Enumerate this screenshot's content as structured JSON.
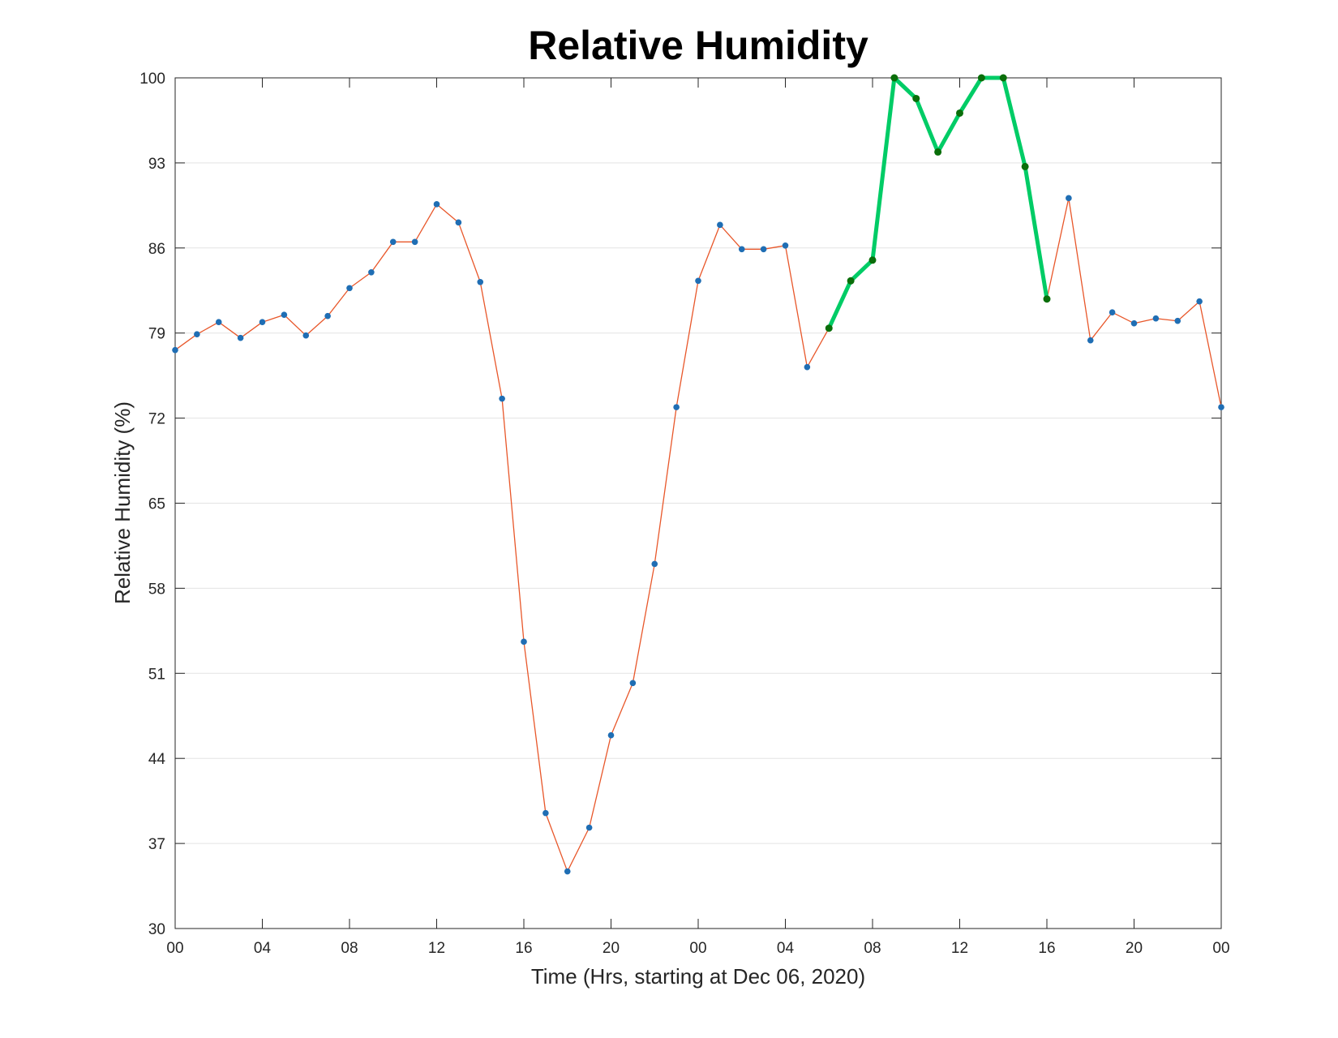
{
  "chart_data": {
    "type": "line",
    "title": "Relative Humidity",
    "xlabel": "Time (Hrs, starting at Dec 06, 2020)",
    "ylabel": "Relative Humidity (%)",
    "ylim": [
      30,
      100
    ],
    "xlim": [
      0,
      48
    ],
    "yticks": [
      30,
      37,
      44,
      51,
      58,
      65,
      72,
      79,
      86,
      93,
      100
    ],
    "ytick_labels": [
      "30",
      "37",
      "44",
      "51",
      "58",
      "65",
      "72",
      "79",
      "86",
      "93",
      "100"
    ],
    "xticks": [
      0,
      4,
      8,
      12,
      16,
      20,
      24,
      28,
      32,
      36,
      40,
      44,
      48
    ],
    "xtick_labels": [
      "00",
      "04",
      "08",
      "12",
      "16",
      "20",
      "00",
      "04",
      "08",
      "12",
      "16",
      "20",
      "00"
    ],
    "grid": "horizontal",
    "series": [
      {
        "role": "all-hours",
        "line_color": "#e8572a",
        "marker_color": "#1f6eb4",
        "x": [
          0,
          1,
          2,
          3,
          4,
          5,
          6,
          7,
          8,
          9,
          10,
          11,
          12,
          13,
          14,
          15,
          16,
          17,
          18,
          19,
          20,
          21,
          22,
          23,
          24,
          25,
          26,
          27,
          28,
          29,
          30,
          31,
          32,
          33,
          34,
          35,
          36,
          37,
          38,
          39,
          40,
          41,
          42,
          43,
          44,
          45,
          46,
          47,
          48
        ],
        "y": [
          77.6,
          78.9,
          79.9,
          78.6,
          79.9,
          80.5,
          78.8,
          80.4,
          82.7,
          84.0,
          86.5,
          86.5,
          89.6,
          88.1,
          83.2,
          73.6,
          53.6,
          39.5,
          34.7,
          38.3,
          45.9,
          50.2,
          60.0,
          72.9,
          83.3,
          87.9,
          85.9,
          85.9,
          86.2,
          76.2,
          79.4,
          83.3,
          85.0,
          100.0,
          98.3,
          93.9,
          97.1,
          100.0,
          100.0,
          92.7,
          81.8,
          90.1,
          78.4,
          80.7,
          79.8,
          80.2,
          80.0,
          81.6,
          72.9
        ]
      },
      {
        "role": "highlighted",
        "line_color": "#00cc66",
        "marker_color": "#0a6e0a",
        "x": [
          30,
          31,
          32,
          33,
          34,
          35,
          36,
          37,
          38,
          39,
          40
        ],
        "y": [
          79.4,
          83.3,
          85.0,
          100.0,
          98.3,
          93.9,
          97.1,
          100.0,
          100.0,
          92.7,
          81.8
        ]
      }
    ]
  }
}
